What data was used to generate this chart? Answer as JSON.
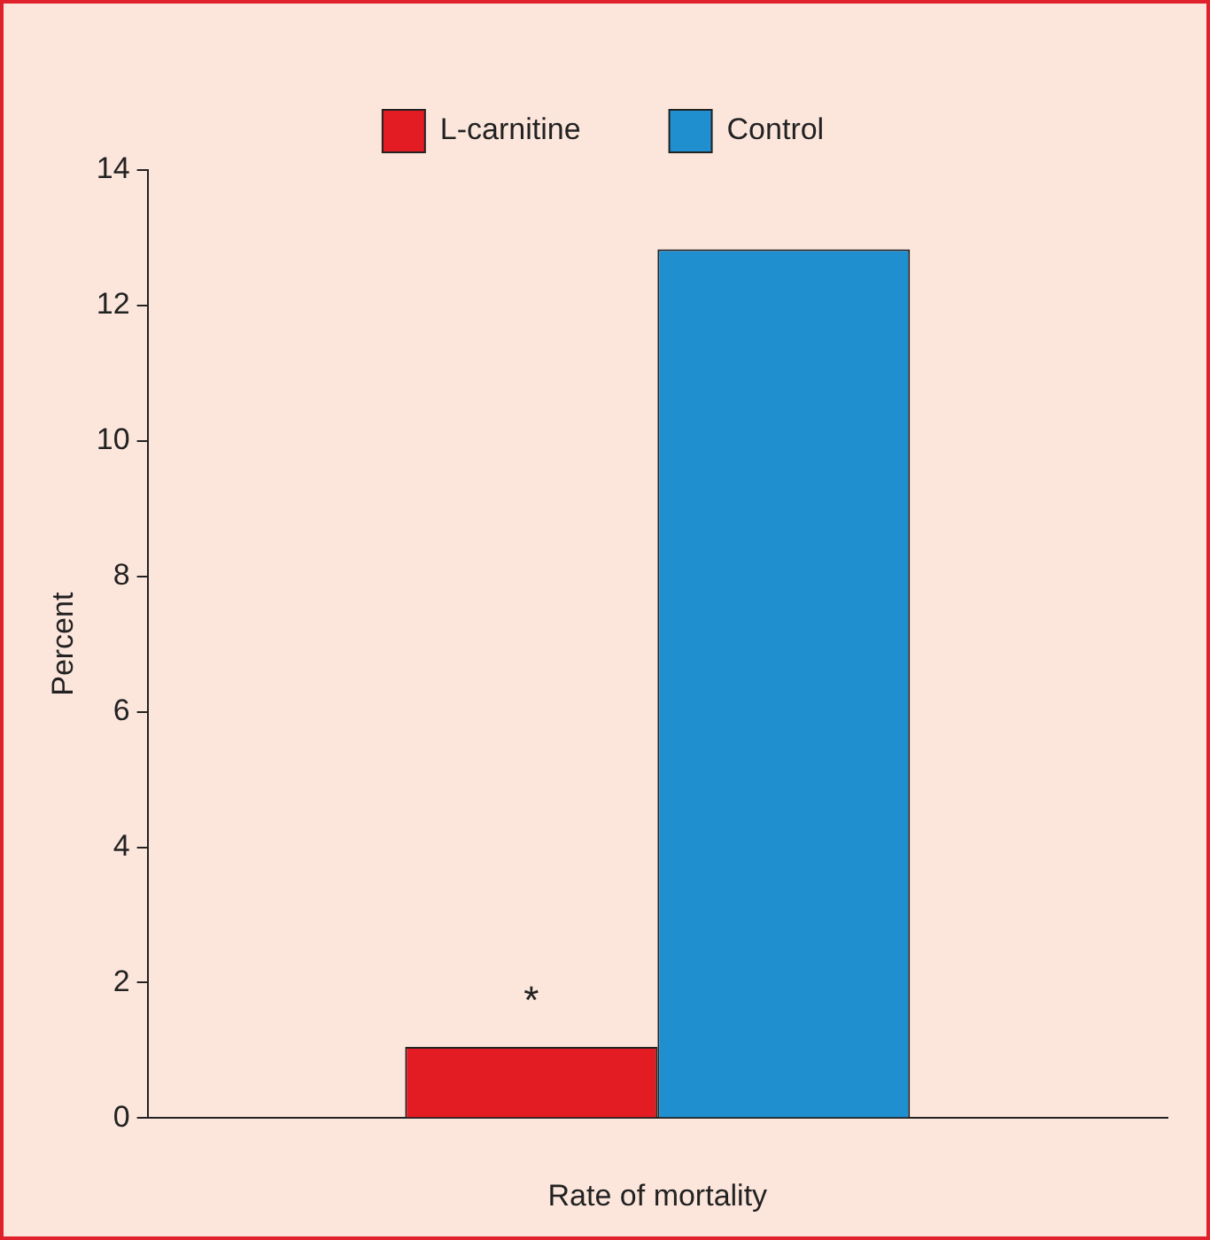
{
  "chart_data": {
    "type": "bar",
    "ylabel": "Percent",
    "xlabel": "Rate of mortality",
    "categories": [
      null
    ],
    "series": [
      {
        "name": "L-carnitine",
        "color": "#e31b23",
        "values": [
          1.05
        ]
      },
      {
        "name": "Control",
        "color": "#1f8fd0",
        "values": [
          12.83
        ]
      }
    ],
    "ylim": [
      0,
      14
    ],
    "yticks": [
      0,
      2,
      4,
      6,
      8,
      10,
      12,
      14
    ],
    "grid": false,
    "legend": "top",
    "annotations": [
      {
        "text": "*",
        "y": 1.05
      }
    ]
  }
}
